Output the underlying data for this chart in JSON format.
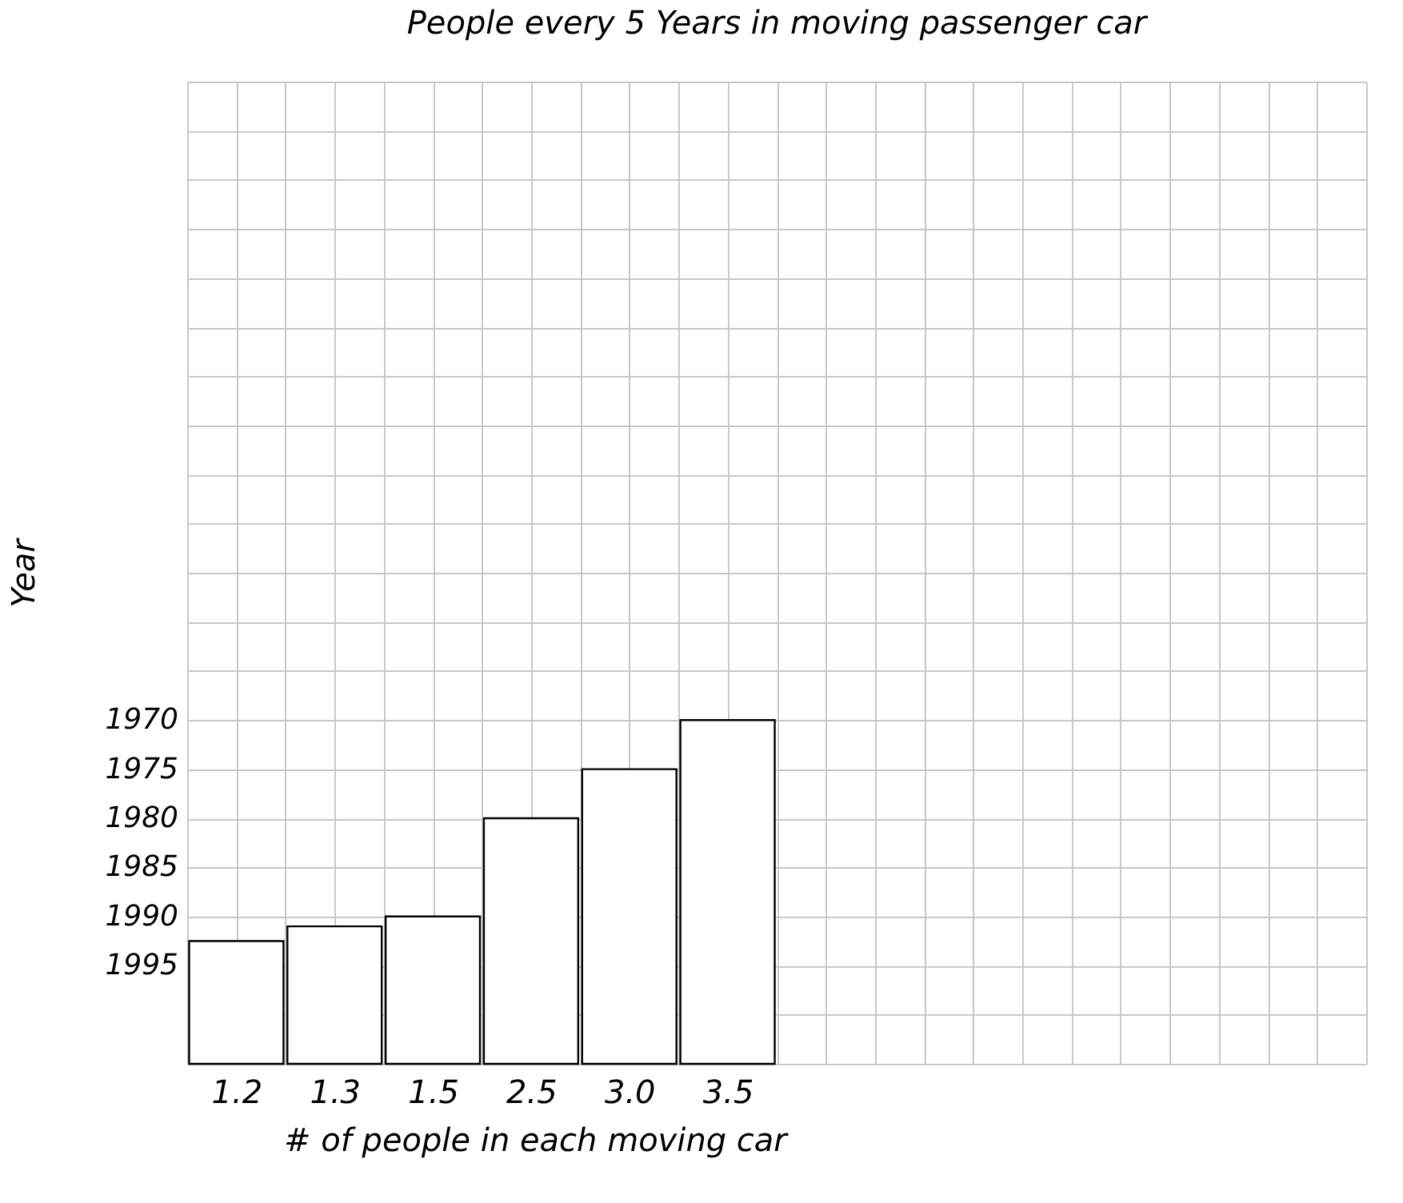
{
  "chart_data": {
    "type": "bar",
    "title": "People every 5 Years in moving passenger car",
    "xlabel": "# of people in each moving car",
    "ylabel": "Year",
    "categories": [
      "1.2",
      "1.3",
      "1.5",
      "2.5",
      "3.0",
      "3.5"
    ],
    "values": [
      -12.5,
      -14,
      -15,
      -25,
      -30,
      -35
    ],
    "base": [
      2005,
      2005,
      2005,
      2005,
      2005,
      2005
    ],
    "color": "#ffffff",
    "ylim": [
      2005,
      1905
    ],
    "yticks": [
      {
        "value": 2005,
        "label": null
      },
      {
        "value": 2000,
        "label": null
      },
      1995,
      1990,
      1985,
      1980,
      1975,
      1970,
      {
        "value": 1965,
        "label": null
      },
      {
        "value": 1960,
        "label": null
      },
      {
        "value": 1955,
        "label": null
      },
      {
        "value": 1950,
        "label": null
      },
      {
        "value": 1945,
        "label": null
      },
      {
        "value": 1940,
        "label": null
      },
      {
        "value": 1935,
        "label": null
      },
      {
        "value": 1930,
        "label": null
      },
      {
        "value": 1925,
        "label": null
      },
      {
        "value": 1920,
        "label": null
      },
      {
        "value": 1915,
        "label": null
      },
      {
        "value": 1910,
        "label": null
      },
      {
        "value": 1905,
        "label": null
      }
    ],
    "grid": true
  }
}
